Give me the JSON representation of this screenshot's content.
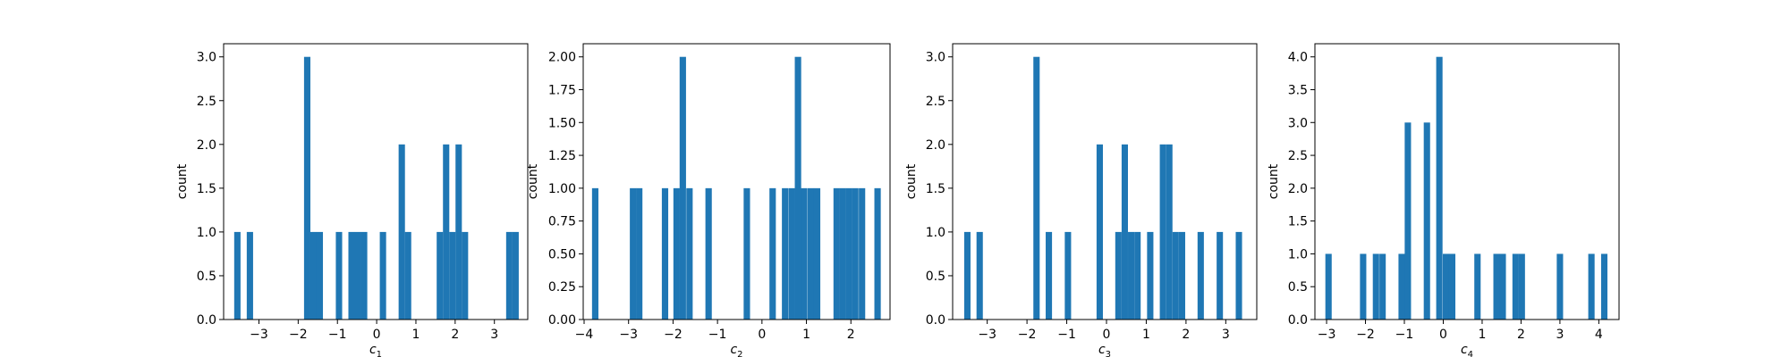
{
  "chart_data": [
    {
      "type": "bar",
      "title": "",
      "ylabel": "count",
      "xlabel_main": "c",
      "xlabel_sub": "1",
      "xlim": [
        -3.9,
        3.85
      ],
      "ylim": [
        0,
        3.15
      ],
      "xticks": [
        -3,
        -2,
        -1,
        0,
        1,
        2,
        3
      ],
      "xtick_labels": [
        "−3",
        "−2",
        "−1",
        "0",
        "1",
        "2",
        "3"
      ],
      "yticks": [
        0,
        0.5,
        1.0,
        1.5,
        2.0,
        2.5,
        3.0
      ],
      "ytick_labels": [
        "0.0",
        "0.5",
        "1.0",
        "1.5",
        "2.0",
        "2.5",
        "3.0"
      ],
      "bins": [
        {
          "x": -3.55,
          "count": 1
        },
        {
          "x": -3.23,
          "count": 1
        },
        {
          "x": -1.77,
          "count": 3
        },
        {
          "x": -1.61,
          "count": 1
        },
        {
          "x": -1.45,
          "count": 1
        },
        {
          "x": -0.96,
          "count": 1
        },
        {
          "x": -0.64,
          "count": 1
        },
        {
          "x": -0.48,
          "count": 1
        },
        {
          "x": -0.32,
          "count": 1
        },
        {
          "x": 0.16,
          "count": 1
        },
        {
          "x": 0.64,
          "count": 2
        },
        {
          "x": 0.8,
          "count": 1
        },
        {
          "x": 1.61,
          "count": 1
        },
        {
          "x": 1.77,
          "count": 2
        },
        {
          "x": 1.93,
          "count": 1
        },
        {
          "x": 2.09,
          "count": 2
        },
        {
          "x": 2.25,
          "count": 1
        },
        {
          "x": 3.38,
          "count": 1
        },
        {
          "x": 3.54,
          "count": 1
        }
      ],
      "bin_width": 0.1613,
      "color": "#1f77b4"
    },
    {
      "type": "bar",
      "title": "",
      "ylabel": "count",
      "xlabel_main": "c",
      "xlabel_sub": "2",
      "xlim": [
        -4.02,
        2.88
      ],
      "ylim": [
        0,
        2.1
      ],
      "xticks": [
        -4,
        -3,
        -2,
        -1,
        0,
        1,
        2
      ],
      "xtick_labels": [
        "−4",
        "−3",
        "−2",
        "−1",
        "0",
        "1",
        "2"
      ],
      "yticks": [
        0,
        0.25,
        0.5,
        0.75,
        1.0,
        1.25,
        1.5,
        1.75,
        2.0
      ],
      "ytick_labels": [
        "0.00",
        "0.25",
        "0.50",
        "0.75",
        "1.00",
        "1.25",
        "1.50",
        "1.75",
        "2.00"
      ],
      "bins": [
        {
          "x": -3.75,
          "count": 1
        },
        {
          "x": -2.9,
          "count": 1
        },
        {
          "x": -2.76,
          "count": 1
        },
        {
          "x": -2.18,
          "count": 1
        },
        {
          "x": -1.92,
          "count": 1
        },
        {
          "x": -1.78,
          "count": 2
        },
        {
          "x": -1.63,
          "count": 1
        },
        {
          "x": -1.2,
          "count": 1
        },
        {
          "x": -0.34,
          "count": 1
        },
        {
          "x": 0.24,
          "count": 1
        },
        {
          "x": 0.52,
          "count": 1
        },
        {
          "x": 0.67,
          "count": 1
        },
        {
          "x": 0.81,
          "count": 2
        },
        {
          "x": 0.95,
          "count": 1
        },
        {
          "x": 1.1,
          "count": 1
        },
        {
          "x": 1.24,
          "count": 1
        },
        {
          "x": 1.68,
          "count": 1
        },
        {
          "x": 1.82,
          "count": 1
        },
        {
          "x": 1.96,
          "count": 1
        },
        {
          "x": 2.1,
          "count": 1
        },
        {
          "x": 2.25,
          "count": 1
        },
        {
          "x": 2.6,
          "count": 1
        }
      ],
      "bin_width": 0.1436,
      "color": "#1f77b4"
    },
    {
      "type": "bar",
      "title": "",
      "ylabel": "count",
      "xlabel_main": "c",
      "xlabel_sub": "3",
      "xlim": [
        -3.87,
        3.78
      ],
      "ylim": [
        0,
        3.15
      ],
      "xticks": [
        -3,
        -2,
        -1,
        0,
        1,
        2,
        3
      ],
      "xtick_labels": [
        "−3",
        "−2",
        "−1",
        "0",
        "1",
        "2",
        "3"
      ],
      "yticks": [
        0,
        0.5,
        1.0,
        1.5,
        2.0,
        2.5,
        3.0
      ],
      "ytick_labels": [
        "0.0",
        "0.5",
        "1.0",
        "1.5",
        "2.0",
        "2.5",
        "3.0"
      ],
      "bins": [
        {
          "x": -3.5,
          "count": 1
        },
        {
          "x": -3.19,
          "count": 1
        },
        {
          "x": -1.76,
          "count": 3
        },
        {
          "x": -1.45,
          "count": 1
        },
        {
          "x": -0.97,
          "count": 1
        },
        {
          "x": -0.17,
          "count": 2
        },
        {
          "x": 0.3,
          "count": 1
        },
        {
          "x": 0.46,
          "count": 2
        },
        {
          "x": 0.62,
          "count": 1
        },
        {
          "x": 0.78,
          "count": 1
        },
        {
          "x": 1.1,
          "count": 1
        },
        {
          "x": 1.42,
          "count": 2
        },
        {
          "x": 1.58,
          "count": 2
        },
        {
          "x": 1.74,
          "count": 1
        },
        {
          "x": 1.9,
          "count": 1
        },
        {
          "x": 2.37,
          "count": 1
        },
        {
          "x": 2.85,
          "count": 1
        },
        {
          "x": 3.33,
          "count": 1
        }
      ],
      "bin_width": 0.159,
      "color": "#1f77b4"
    },
    {
      "type": "bar",
      "title": "",
      "ylabel": "count",
      "xlabel_main": "c",
      "xlabel_sub": "4",
      "xlim": [
        -3.3,
        4.52
      ],
      "ylim": [
        0,
        4.2
      ],
      "xticks": [
        -3,
        -2,
        -1,
        0,
        1,
        2,
        3,
        4
      ],
      "xtick_labels": [
        "−3",
        "−2",
        "−1",
        "0",
        "1",
        "2",
        "3",
        "4"
      ],
      "yticks": [
        0,
        0.5,
        1.0,
        1.5,
        2.0,
        2.5,
        3.0,
        3.5,
        4.0
      ],
      "ytick_labels": [
        "0.0",
        "0.5",
        "1.0",
        "1.5",
        "2.0",
        "2.5",
        "3.0",
        "3.5",
        "4.0"
      ],
      "bins": [
        {
          "x": -2.95,
          "count": 1
        },
        {
          "x": -2.06,
          "count": 1
        },
        {
          "x": -1.73,
          "count": 1
        },
        {
          "x": -1.56,
          "count": 1
        },
        {
          "x": -1.07,
          "count": 1
        },
        {
          "x": -0.91,
          "count": 3
        },
        {
          "x": -0.42,
          "count": 3
        },
        {
          "x": -0.1,
          "count": 4
        },
        {
          "x": 0.07,
          "count": 1
        },
        {
          "x": 0.23,
          "count": 1
        },
        {
          "x": 0.88,
          "count": 1
        },
        {
          "x": 1.37,
          "count": 1
        },
        {
          "x": 1.53,
          "count": 1
        },
        {
          "x": 1.86,
          "count": 1
        },
        {
          "x": 2.02,
          "count": 1
        },
        {
          "x": 3.0,
          "count": 1
        },
        {
          "x": 3.81,
          "count": 1
        },
        {
          "x": 4.14,
          "count": 1
        }
      ],
      "bin_width": 0.1628,
      "color": "#1f77b4"
    }
  ]
}
